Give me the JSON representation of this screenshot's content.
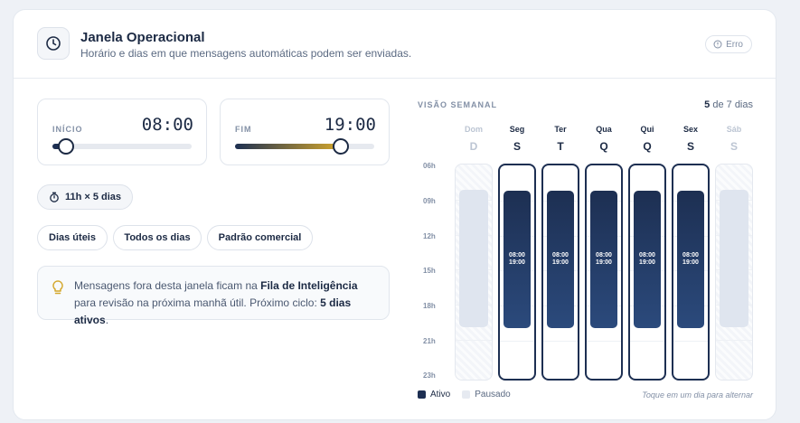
{
  "header": {
    "title": "Janela Operacional",
    "subtitle": "Horário e dias em que mensagens automáticas podem ser enviadas.",
    "badge": "Erro",
    "icon": "clock-icon"
  },
  "start": {
    "label": "INÍCIO",
    "value": "08:00",
    "fraction": 0.1
  },
  "end": {
    "label": "FIM",
    "value": "19:00",
    "fraction": 0.76
  },
  "duration": "11h × 5 dias",
  "presets": [
    "Dias úteis",
    "Todos os dias",
    "Padrão comercial"
  ],
  "info": {
    "text_before": "Mensagens fora desta janela ficam na ",
    "highlight": "Fila de Inteligência",
    "text_middle": " para revisão na próxima manhã útil. Próximo ciclo: ",
    "cycle": "5 dias ativos",
    "text_after": "."
  },
  "week": {
    "label": "VISÃO SEMANAL",
    "count_active": "5",
    "count_rest": " de 7 dias",
    "hours": [
      "06h",
      "09h",
      "12h",
      "15h",
      "18h",
      "21h",
      "23h"
    ],
    "days": [
      {
        "name": "Dom",
        "letter": "D",
        "active": false,
        "start": "",
        "end": ""
      },
      {
        "name": "Seg",
        "letter": "S",
        "active": true,
        "start": "08:00",
        "end": "19:00"
      },
      {
        "name": "Ter",
        "letter": "T",
        "active": true,
        "start": "08:00",
        "end": "19:00"
      },
      {
        "name": "Qua",
        "letter": "Q",
        "active": true,
        "start": "08:00",
        "end": "19:00"
      },
      {
        "name": "Qui",
        "letter": "Q",
        "active": true,
        "start": "08:00",
        "end": "19:00"
      },
      {
        "name": "Sex",
        "letter": "S",
        "active": true,
        "start": "08:00",
        "end": "19:00"
      },
      {
        "name": "Sáb",
        "letter": "S",
        "active": false,
        "start": "",
        "end": ""
      }
    ]
  },
  "legend": {
    "active": "Ativo",
    "paused": "Pausado"
  },
  "hint": "Toque em um dia para alternar",
  "colors": {
    "primary": "#1d2f52",
    "accent": "#d4a72c",
    "muted": "#dfe5ef"
  }
}
